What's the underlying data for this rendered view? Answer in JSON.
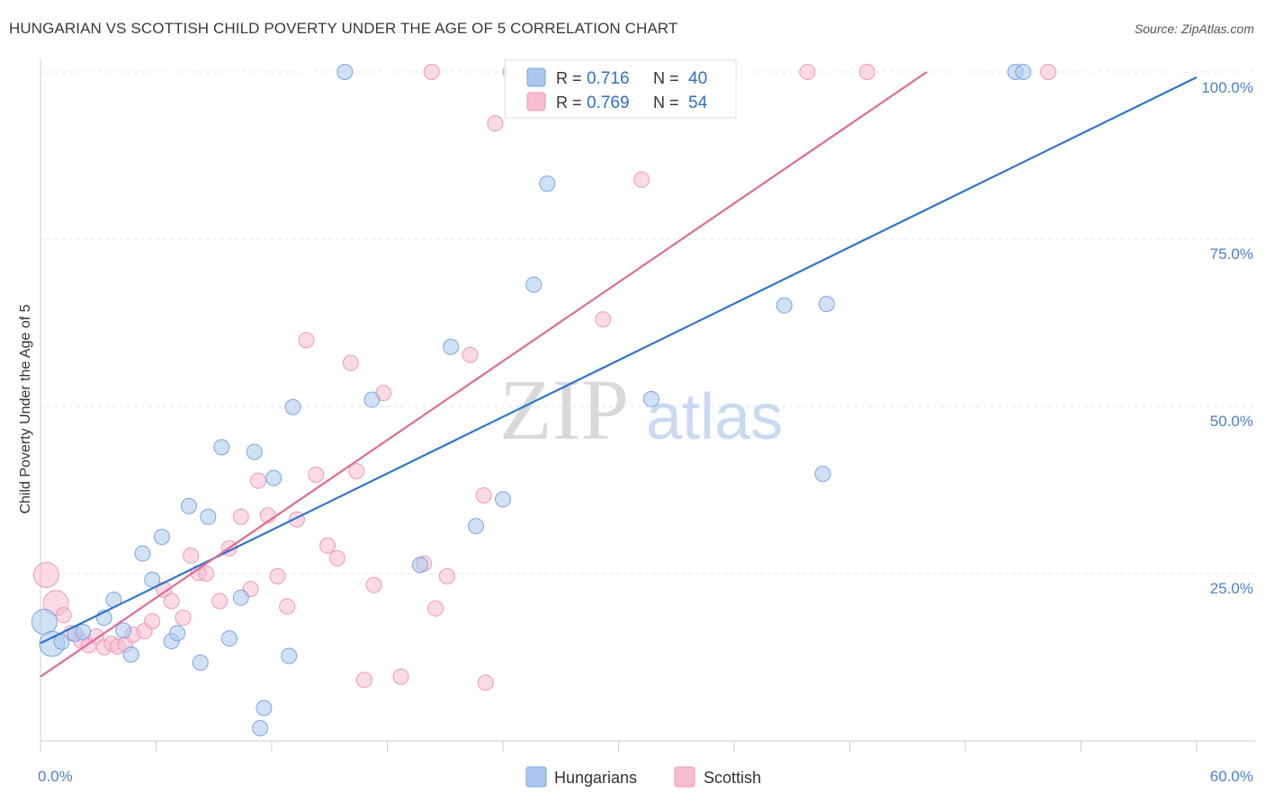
{
  "header": {
    "title": "HUNGARIAN VS SCOTTISH CHILD POVERTY UNDER THE AGE OF 5 CORRELATION CHART",
    "source": "Source: ZipAtlas.com"
  },
  "watermark": {
    "zip": "ZIP",
    "atlas": "atlas"
  },
  "legend_top": {
    "rows": [
      {
        "r_label": "R = ",
        "r_value": "0.716",
        "n_label": "N = ",
        "n_value": "40"
      },
      {
        "r_label": "R = ",
        "r_value": "0.769",
        "n_label": "N = ",
        "n_value": "54"
      }
    ]
  },
  "legend_bottom": {
    "items": [
      "Hungarians",
      "Scottish"
    ]
  },
  "colors": {
    "hungarians_fill": "#a9c8ef",
    "hungarians_stroke": "#7aa6de",
    "hungarians_line": "#2f74d0",
    "scottish_fill": "#f7bcd0",
    "scottish_stroke": "#ee9ab6",
    "scottish_line": "#e06a96",
    "tick_label": "#4a7fc9",
    "grid": "#e3e3e3"
  },
  "chart_data": {
    "type": "scatter",
    "title": "HUNGARIAN VS SCOTTISH CHILD POVERTY UNDER THE AGE OF 5 CORRELATION CHART",
    "xlabel": "",
    "ylabel": "Child Poverty Under the Age of 5",
    "xlim": [
      0,
      60
    ],
    "ylim": [
      0,
      100
    ],
    "x_tick_labels": [
      "0.0%",
      "60.0%"
    ],
    "y_ticks": [
      25,
      50,
      75,
      100
    ],
    "y_tick_labels": [
      "25.0%",
      "50.0%",
      "75.0%",
      "100.0%"
    ],
    "grid": true,
    "legend_position": "top-center",
    "series": [
      {
        "name": "Hungarians",
        "r": 0.716,
        "n": 40,
        "trend": [
          [
            0,
            14.6
          ],
          [
            60,
            99.2
          ]
        ],
        "points": [
          [
            0.2,
            17.8
          ],
          [
            0.6,
            14.5
          ],
          [
            1.1,
            14.8
          ],
          [
            1.8,
            16.0
          ],
          [
            2.2,
            16.3
          ],
          [
            3.3,
            18.4
          ],
          [
            3.8,
            21.1
          ],
          [
            4.3,
            16.5
          ],
          [
            4.7,
            12.9
          ],
          [
            5.3,
            28.0
          ],
          [
            5.8,
            24.1
          ],
          [
            6.3,
            30.5
          ],
          [
            6.8,
            14.9
          ],
          [
            7.1,
            16.1
          ],
          [
            7.7,
            35.1
          ],
          [
            8.3,
            11.7
          ],
          [
            8.7,
            33.5
          ],
          [
            9.4,
            43.9
          ],
          [
            9.8,
            15.3
          ],
          [
            10.4,
            21.4
          ],
          [
            11.1,
            43.2
          ],
          [
            11.4,
            1.9
          ],
          [
            11.6,
            4.9
          ],
          [
            12.1,
            39.3
          ],
          [
            12.9,
            12.7
          ],
          [
            13.1,
            49.9
          ],
          [
            15.8,
            100.0
          ],
          [
            17.2,
            51.0
          ],
          [
            19.7,
            26.3
          ],
          [
            21.3,
            58.9
          ],
          [
            22.6,
            32.1
          ],
          [
            24.0,
            36.1
          ],
          [
            25.6,
            68.2
          ],
          [
            26.3,
            83.3
          ],
          [
            31.7,
            51.1
          ],
          [
            38.6,
            65.1
          ],
          [
            40.6,
            39.9
          ],
          [
            40.8,
            65.3
          ],
          [
            50.6,
            100.0
          ],
          [
            51.0,
            100.0
          ]
        ]
      },
      {
        "name": "Scottish",
        "r": 0.769,
        "n": 54,
        "trend": [
          [
            0,
            9.6
          ],
          [
            46,
            100.0
          ]
        ],
        "points": [
          [
            0.3,
            24.8
          ],
          [
            0.8,
            20.6
          ],
          [
            1.2,
            18.8
          ],
          [
            1.6,
            16.1
          ],
          [
            2.1,
            15.0
          ],
          [
            2.5,
            14.3
          ],
          [
            2.9,
            15.6
          ],
          [
            3.3,
            14.0
          ],
          [
            3.7,
            14.5
          ],
          [
            4.0,
            14.1
          ],
          [
            4.4,
            14.4
          ],
          [
            4.8,
            15.9
          ],
          [
            5.4,
            16.4
          ],
          [
            5.8,
            17.9
          ],
          [
            6.4,
            22.6
          ],
          [
            6.8,
            20.9
          ],
          [
            7.4,
            18.4
          ],
          [
            7.8,
            27.7
          ],
          [
            8.2,
            25.1
          ],
          [
            8.6,
            25.0
          ],
          [
            9.3,
            20.9
          ],
          [
            9.8,
            28.8
          ],
          [
            10.4,
            33.5
          ],
          [
            10.9,
            22.7
          ],
          [
            11.3,
            38.9
          ],
          [
            11.8,
            33.7
          ],
          [
            12.3,
            24.6
          ],
          [
            12.8,
            20.1
          ],
          [
            13.3,
            33.1
          ],
          [
            13.8,
            59.9
          ],
          [
            14.3,
            39.8
          ],
          [
            14.9,
            29.2
          ],
          [
            15.4,
            27.3
          ],
          [
            16.1,
            56.5
          ],
          [
            16.4,
            40.3
          ],
          [
            16.8,
            9.1
          ],
          [
            17.3,
            23.3
          ],
          [
            17.8,
            52.0
          ],
          [
            18.7,
            9.6
          ],
          [
            19.9,
            26.5
          ],
          [
            20.3,
            100.0
          ],
          [
            20.5,
            19.8
          ],
          [
            21.1,
            24.6
          ],
          [
            22.3,
            57.7
          ],
          [
            23.0,
            36.7
          ],
          [
            23.1,
            8.7
          ],
          [
            23.6,
            92.3
          ],
          [
            24.4,
            100.0
          ],
          [
            29.2,
            63.0
          ],
          [
            31.2,
            83.9
          ],
          [
            35.4,
            100.0
          ],
          [
            39.8,
            100.0
          ],
          [
            42.9,
            100.0
          ],
          [
            52.3,
            100.0
          ]
        ]
      }
    ]
  }
}
